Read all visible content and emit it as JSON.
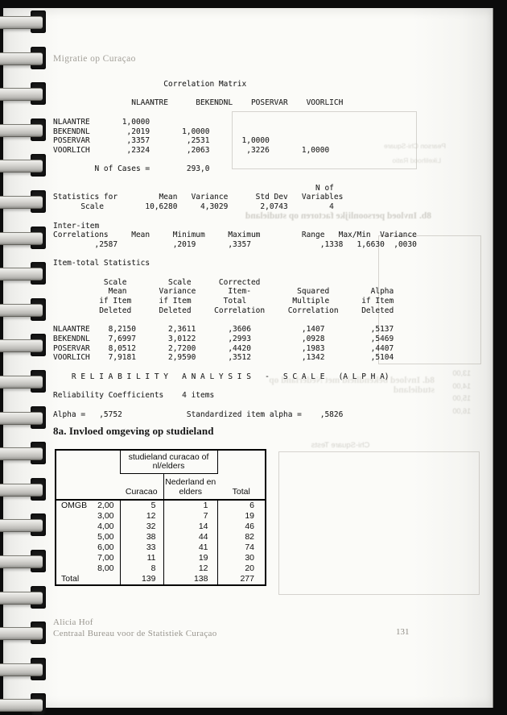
{
  "page": {
    "running_header": "Migratie op Curaçao",
    "page_number": "131",
    "footer_author": "Alicia Hof",
    "footer_org": "Centraal Bureau voor de Statistiek Curaçao"
  },
  "colors": {
    "paper": "#fbfbf8",
    "ink": "#2b2b2b",
    "background": "#0c0c0c"
  },
  "spss": {
    "text": "                        Correlation Matrix\n\n                 NLAANTRE      BEKENDNL    POSERVAR    VOORLICH\n\nNLAANTRE       1,0000\nBEKENDNL        ,2019       1,0000\nPOSERVAR        ,3357        ,2531       1,0000\nVOORLICH        ,2324        ,2063        ,3226       1,0000\n\n         N of Cases =        293,0\n\n                                                         N of\nStatistics for         Mean   Variance      Std Dev   Variables\n      Scale         10,6280     4,3029       2,0743         4\n\nInter-item\nCorrelations     Mean     Minimum     Maximum         Range   Max/Min  Variance\n         ,2587            ,2019       ,3357               ,1338   1,6630  ,0030\n\nItem-total Statistics\n\n           Scale         Scale      Corrected\n            Mean       Variance       Item-          Squared         Alpha\n          if Item      if Item       Total          Multiple       if Item\n          Deleted      Deleted     Correlation     Correlation     Deleted\n\nNLAANTRE    8,2150       2,3611       ,3606           ,1407          ,5137\nBEKENDNL    7,6997       3,0122       ,2993           ,0928          ,5469\nPOSERVAR    8,0512       2,7200       ,4420           ,1983          ,4407\nVOORLICH    7,9181       2,9590       ,3512           ,1342          ,5104\n\n    R E L I A B I L I T Y   A N A L Y S I S   -   S C A L E   (A L P H A)\n\nReliability Coefficients    4 items\n\nAlpha =   ,5752              Standardized item alpha =    ,5826",
    "structured": {
      "correlation_matrix": {
        "title": "Correlation Matrix",
        "variables": [
          "NLAANTRE",
          "BEKENDNL",
          "POSERVAR",
          "VOORLICH"
        ],
        "rows": [
          [
            "1,0000"
          ],
          [
            ",2019",
            "1,0000"
          ],
          [
            ",3357",
            ",2531",
            "1,0000"
          ],
          [
            ",2324",
            ",2063",
            ",3226",
            "1,0000"
          ]
        ]
      },
      "n_of_cases": "293,0",
      "scale_statistics": {
        "mean": "10,6280",
        "variance": "4,3029",
        "std_dev": "2,0743",
        "n_of_variables": "4"
      },
      "inter_item_correlations": {
        "mean": ",2587",
        "minimum": ",2019",
        "maximum": ",3357",
        "range": ",1338",
        "max_min": "1,6630",
        "variance": ",0030"
      },
      "item_total_statistics": {
        "columns": [
          "Scale Mean if Item Deleted",
          "Scale Variance if Item Deleted",
          "Corrected Item-Total Correlation",
          "Squared Multiple Correlation",
          "Alpha if Item Deleted"
        ],
        "rows": [
          {
            "item": "NLAANTRE",
            "values": [
              "8,2150",
              "2,3611",
              ",3606",
              ",1407",
              ",5137"
            ]
          },
          {
            "item": "BEKENDNL",
            "values": [
              "7,6997",
              "3,0122",
              ",2993",
              ",0928",
              ",5469"
            ]
          },
          {
            "item": "POSERVAR",
            "values": [
              "8,0512",
              "2,7200",
              ",4420",
              ",1983",
              ",4407"
            ]
          },
          {
            "item": "VOORLICH",
            "values": [
              "7,9181",
              "2,9590",
              ",3512",
              ",1342",
              ",5104"
            ]
          }
        ]
      },
      "reliability": {
        "banner": "R E L I A B I L I T Y   A N A L Y S I S   -   S C A L E   (A L P H A)",
        "coefficients_label": "Reliability Coefficients",
        "n_items": "4 items",
        "alpha": ",5752",
        "standardized_item_alpha": ",5826"
      }
    }
  },
  "section8a": {
    "title": "8a. Invloed omgeving op studieland",
    "crosstab": {
      "col_group": "studieland curacao of nl/elders",
      "col1": "Curacao",
      "col2": "Nederland en elders",
      "total_header": "Total",
      "row_var": "OMGB",
      "rows": [
        {
          "label": "2,00",
          "curacao": "5",
          "nl": "1",
          "total": "6"
        },
        {
          "label": "3,00",
          "curacao": "12",
          "nl": "7",
          "total": "19"
        },
        {
          "label": "4,00",
          "curacao": "32",
          "nl": "14",
          "total": "46"
        },
        {
          "label": "5,00",
          "curacao": "38",
          "nl": "44",
          "total": "82"
        },
        {
          "label": "6,00",
          "curacao": "33",
          "nl": "41",
          "total": "74"
        },
        {
          "label": "7,00",
          "curacao": "11",
          "nl": "19",
          "total": "30"
        },
        {
          "label": "8,00",
          "curacao": "8",
          "nl": "12",
          "total": "20"
        },
        {
          "label": "Total",
          "curacao": "139",
          "nl": "138",
          "total": "277",
          "is_total": true
        }
      ]
    }
  },
  "ghosts": {
    "heading_8b": "8b. Invloed persoonlijke factoren op studieland",
    "heading_8d": "8d. Invloed bekendheid met Nederland op studieland",
    "chi_square": "Chi-Square Tests",
    "pearson": "Pearson Chi-Square",
    "likelihood": "Likelihood Ratio",
    "values_col": "13,00\n14,00\n15,00\n16,00"
  }
}
